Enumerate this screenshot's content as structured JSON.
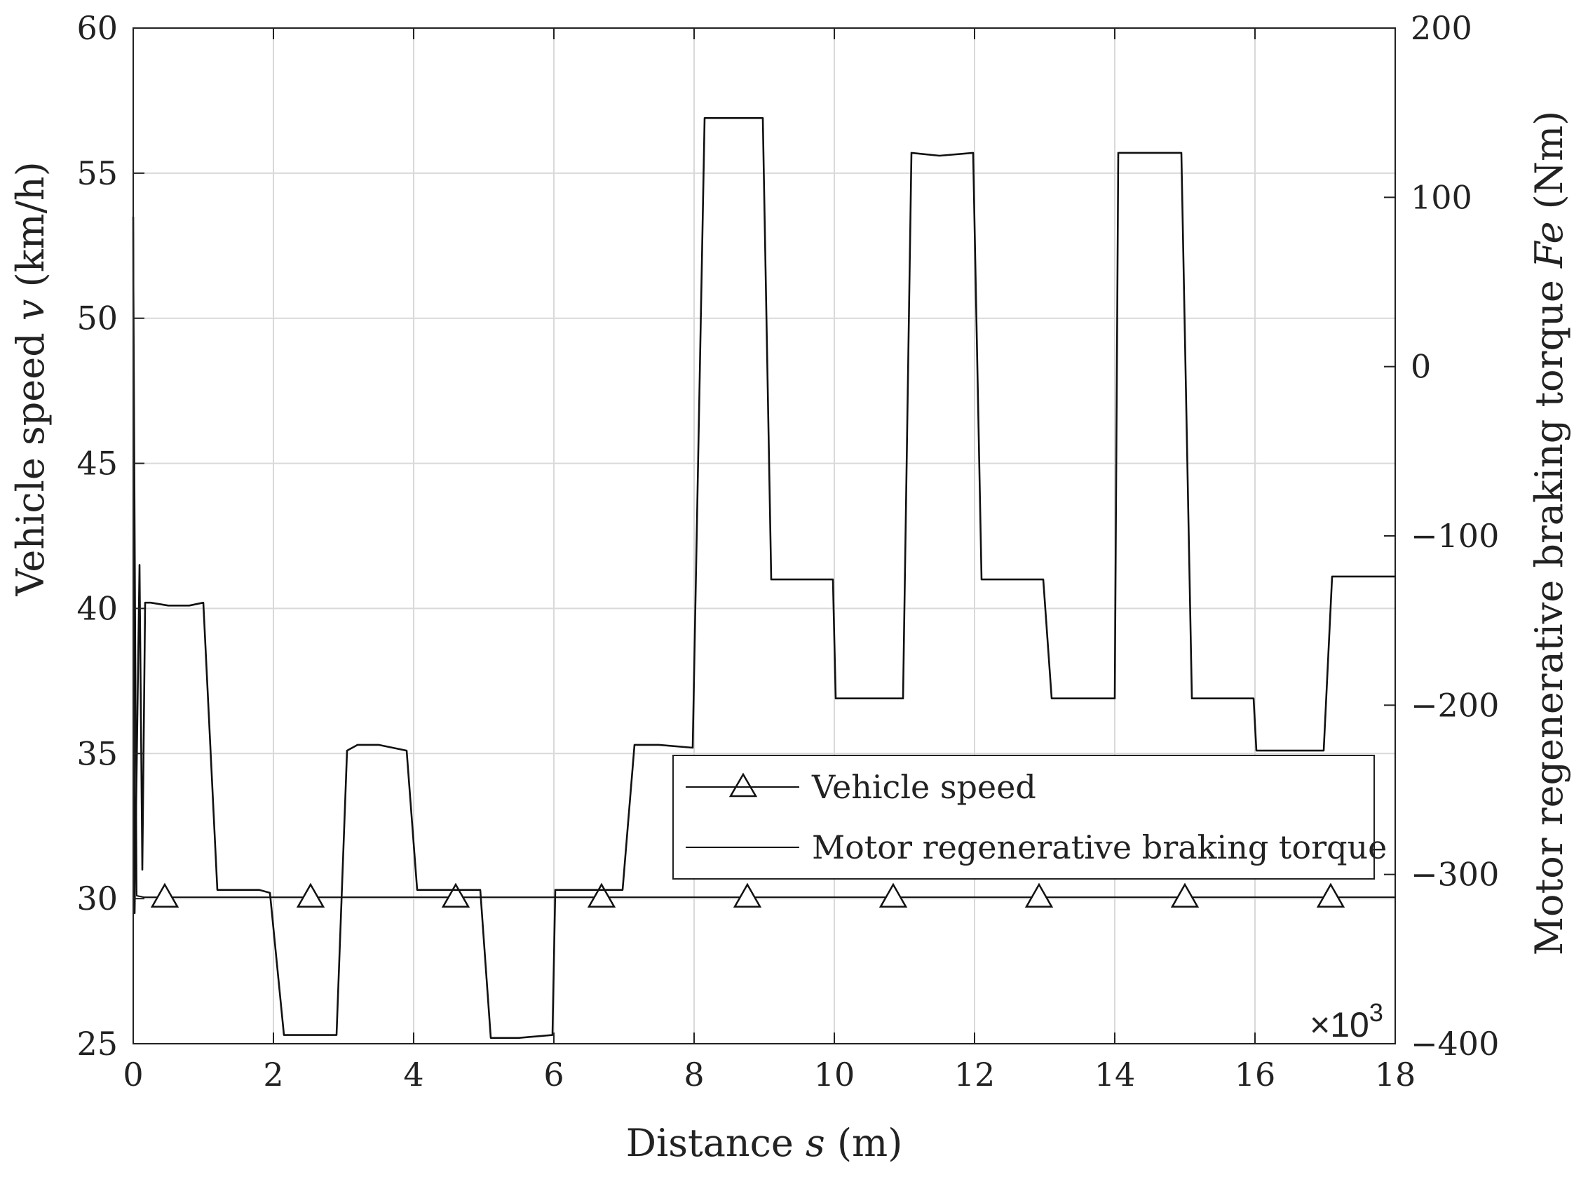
{
  "chart_data": {
    "type": "line",
    "x_axis": {
      "label_text": "Distance",
      "label_symbol": "s",
      "label_unit": "(m)",
      "range": [
        0,
        18
      ],
      "ticks": [
        "0",
        "2",
        "4",
        "6",
        "8",
        "10",
        "12",
        "14",
        "16",
        "18"
      ],
      "multiplier": "×10",
      "multiplier_exp": "3"
    },
    "y_left": {
      "label_text": "Vehicle speed",
      "label_symbol": "v",
      "label_unit": "(km/h)",
      "range": [
        25,
        60
      ],
      "ticks": [
        "25",
        "30",
        "35",
        "40",
        "45",
        "50",
        "55",
        "60"
      ]
    },
    "y_right": {
      "label_text": "Motor regenerative braking torque",
      "label_symbol": "Fe",
      "label_unit": "(Nm)",
      "range": [
        -400,
        200
      ],
      "ticks": [
        "−400",
        "−300",
        "−200",
        "−100",
        "0",
        "100",
        "200"
      ]
    },
    "grid": true,
    "legend": {
      "placement": "lower-right",
      "entries": [
        "Vehicle speed",
        "Motor regenerative braking torque"
      ]
    },
    "series": [
      {
        "name": "Vehicle speed",
        "axis": "left",
        "marker": "triangle",
        "x": [
          0,
          0.05,
          0.15,
          18
        ],
        "y": [
          53.5,
          30.1,
          30.05,
          30.05
        ],
        "marker_x": [
          0.45,
          2.53,
          4.6,
          6.68,
          8.76,
          10.84,
          12.92,
          15.0,
          17.08
        ]
      },
      {
        "name": "Motor regenerative braking torque",
        "axis": "left",
        "x": [
          0,
          0.02,
          0.09,
          0.13,
          0.17,
          0.25,
          0.5,
          0.8,
          1.0,
          1.2,
          1.5,
          1.8,
          1.95,
          2.15,
          2.5,
          2.9,
          3.05,
          3.2,
          3.5,
          3.9,
          4.05,
          4.2,
          4.5,
          4.95,
          5.1,
          5.5,
          5.98,
          6.02,
          6.5,
          6.98,
          7.15,
          7.5,
          7.98,
          8.15,
          8.5,
          8.98,
          9.1,
          9.5,
          9.98,
          10.02,
          10.5,
          10.98,
          11.1,
          11.5,
          11.98,
          12.1,
          12.5,
          12.98,
          13.1,
          13.5,
          14.0,
          14.05,
          14.5,
          14.95,
          15.1,
          15.5,
          15.98,
          16.02,
          16.5,
          16.98,
          17.1,
          17.5,
          18.0
        ],
        "y": [
          53.5,
          29.5,
          41.5,
          31.0,
          40.2,
          40.2,
          40.1,
          40.1,
          40.2,
          30.3,
          30.3,
          30.3,
          30.2,
          25.3,
          25.3,
          25.3,
          35.1,
          35.3,
          35.3,
          35.1,
          30.3,
          30.3,
          30.3,
          30.3,
          25.2,
          25.2,
          25.3,
          30.3,
          30.3,
          30.3,
          35.3,
          35.3,
          35.2,
          56.9,
          56.9,
          56.9,
          41.0,
          41.0,
          41.0,
          36.9,
          36.9,
          36.9,
          55.7,
          55.6,
          55.7,
          41.0,
          41.0,
          41.0,
          36.9,
          36.9,
          36.9,
          55.7,
          55.7,
          55.7,
          36.9,
          36.9,
          36.9,
          35.1,
          35.1,
          35.1,
          41.1,
          41.1,
          41.1
        ]
      }
    ]
  }
}
